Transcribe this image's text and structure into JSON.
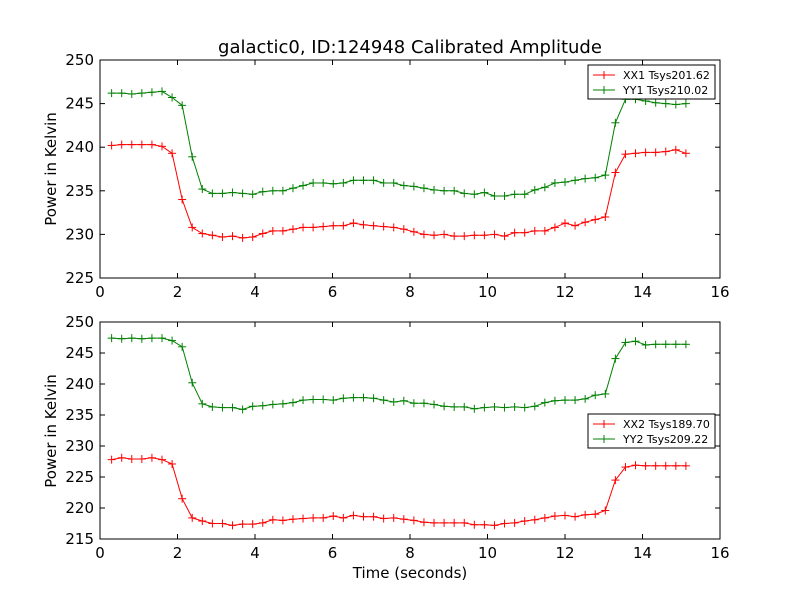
{
  "chart_data": [
    {
      "type": "line",
      "title": "galactic0, ID:124948 Calibrated Amplitude",
      "xlabel": "",
      "ylabel": "Power in Kelvin",
      "xlim": [
        0,
        16
      ],
      "ylim": [
        225,
        250
      ],
      "xticks": [
        "0",
        "2",
        "4",
        "6",
        "8",
        "10",
        "12",
        "14",
        "16"
      ],
      "yticks": [
        "225",
        "230",
        "235",
        "240",
        "245",
        "250"
      ],
      "legend_position": "top-right",
      "x": [
        0.3,
        0.56,
        0.82,
        1.08,
        1.34,
        1.6,
        1.86,
        2.12,
        2.38,
        2.64,
        2.9,
        3.16,
        3.42,
        3.68,
        3.94,
        4.2,
        4.46,
        4.72,
        4.98,
        5.24,
        5.5,
        5.76,
        6.02,
        6.28,
        6.54,
        6.8,
        7.06,
        7.32,
        7.58,
        7.84,
        8.1,
        8.36,
        8.62,
        8.88,
        9.14,
        9.4,
        9.66,
        9.92,
        10.18,
        10.44,
        10.7,
        10.96,
        11.22,
        11.48,
        11.74,
        12.0,
        12.26,
        12.52,
        12.78,
        13.04,
        13.3,
        13.56,
        13.82,
        14.08,
        14.34,
        14.6,
        14.86,
        15.12
      ],
      "series": [
        {
          "name": "XX1 Tsys201.62",
          "color": "#ff0000",
          "values": [
            240.2,
            240.3,
            240.3,
            240.3,
            240.3,
            240.1,
            239.3,
            234.0,
            230.8,
            230.1,
            229.9,
            229.7,
            229.8,
            229.6,
            229.7,
            230.1,
            230.4,
            230.4,
            230.6,
            230.8,
            230.8,
            230.9,
            231.0,
            231.0,
            231.3,
            231.1,
            231.0,
            230.9,
            230.8,
            230.6,
            230.3,
            230.0,
            229.9,
            230.0,
            229.8,
            229.8,
            229.9,
            229.9,
            230.0,
            229.8,
            230.2,
            230.2,
            230.4,
            230.4,
            230.8,
            231.3,
            231.0,
            231.4,
            231.7,
            232.0,
            237.1,
            239.2,
            239.3,
            239.4,
            239.4,
            239.5,
            239.7,
            239.3
          ]
        },
        {
          "name": "YY1 Tsys210.02",
          "color": "#008000",
          "values": [
            246.2,
            246.2,
            246.1,
            246.2,
            246.3,
            246.4,
            245.7,
            244.8,
            238.9,
            235.2,
            234.7,
            234.7,
            234.8,
            234.7,
            234.6,
            234.9,
            235.0,
            235.0,
            235.3,
            235.6,
            235.9,
            235.9,
            235.8,
            235.9,
            236.2,
            236.2,
            236.2,
            235.9,
            235.9,
            235.6,
            235.5,
            235.3,
            235.1,
            235.0,
            235.0,
            234.7,
            234.6,
            234.8,
            234.4,
            234.4,
            234.6,
            234.6,
            235.1,
            235.4,
            235.9,
            236.0,
            236.2,
            236.4,
            236.5,
            236.8,
            242.8,
            245.5,
            245.5,
            245.3,
            245.1,
            245.0,
            244.9,
            245.0
          ]
        }
      ]
    },
    {
      "type": "line",
      "title": "",
      "xlabel": "Time (seconds)",
      "ylabel": "Power in Kelvin",
      "xlim": [
        0,
        16
      ],
      "ylim": [
        215,
        250
      ],
      "xticks": [
        "0",
        "2",
        "4",
        "6",
        "8",
        "10",
        "12",
        "14",
        "16"
      ],
      "yticks": [
        "215",
        "220",
        "225",
        "230",
        "235",
        "240",
        "245",
        "250"
      ],
      "legend_position": "center-right",
      "x": [
        0.3,
        0.56,
        0.82,
        1.08,
        1.34,
        1.6,
        1.86,
        2.12,
        2.38,
        2.64,
        2.9,
        3.16,
        3.42,
        3.68,
        3.94,
        4.2,
        4.46,
        4.72,
        4.98,
        5.24,
        5.5,
        5.76,
        6.02,
        6.28,
        6.54,
        6.8,
        7.06,
        7.32,
        7.58,
        7.84,
        8.1,
        8.36,
        8.62,
        8.88,
        9.14,
        9.4,
        9.66,
        9.92,
        10.18,
        10.44,
        10.7,
        10.96,
        11.22,
        11.48,
        11.74,
        12.0,
        12.26,
        12.52,
        12.78,
        13.04,
        13.3,
        13.56,
        13.82,
        14.08,
        14.34,
        14.6,
        14.86,
        15.12
      ],
      "series": [
        {
          "name": "XX2 Tsys189.70",
          "color": "#ff0000",
          "values": [
            227.8,
            228.1,
            227.9,
            227.9,
            228.1,
            227.8,
            227.1,
            221.5,
            218.4,
            217.9,
            217.5,
            217.5,
            217.2,
            217.4,
            217.4,
            217.6,
            218.1,
            218.0,
            218.2,
            218.3,
            218.4,
            218.4,
            218.7,
            218.4,
            218.8,
            218.6,
            218.6,
            218.3,
            218.4,
            218.2,
            218.0,
            217.7,
            217.6,
            217.6,
            217.6,
            217.6,
            217.3,
            217.3,
            217.2,
            217.5,
            217.6,
            217.9,
            218.1,
            218.4,
            218.7,
            218.8,
            218.6,
            218.9,
            219.0,
            219.6,
            224.5,
            226.6,
            226.9,
            226.8,
            226.8,
            226.8,
            226.8,
            226.8
          ]
        },
        {
          "name": "YY2 Tsys209.22",
          "color": "#008000",
          "values": [
            247.4,
            247.3,
            247.4,
            247.3,
            247.4,
            247.4,
            247.0,
            246.0,
            240.2,
            236.8,
            236.3,
            236.2,
            236.2,
            235.9,
            236.4,
            236.5,
            236.7,
            236.8,
            237.0,
            237.4,
            237.5,
            237.5,
            237.4,
            237.7,
            237.8,
            237.8,
            237.7,
            237.4,
            237.1,
            237.3,
            236.9,
            236.9,
            236.7,
            236.4,
            236.3,
            236.3,
            236.0,
            236.2,
            236.3,
            236.2,
            236.3,
            236.2,
            236.4,
            237.0,
            237.3,
            237.4,
            237.4,
            237.6,
            238.2,
            238.4,
            244.1,
            246.7,
            246.9,
            246.3,
            246.4,
            246.4,
            246.4,
            246.4
          ]
        }
      ]
    }
  ]
}
